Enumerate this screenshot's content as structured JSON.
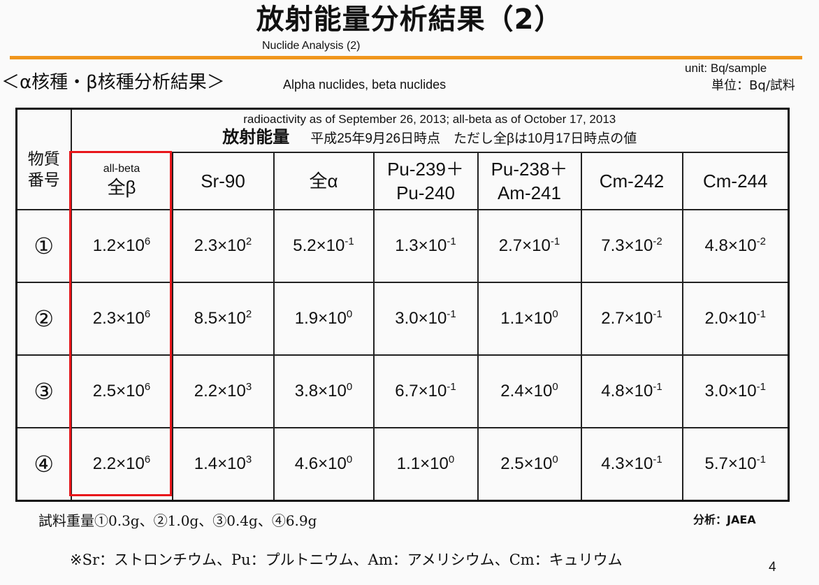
{
  "title": "放射能量分析結果（2）",
  "subtitle": "Nuclide Analysis (2)",
  "section": {
    "jp": "＜α核種・β核種分析結果＞",
    "en": "Alpha nuclides, beta nuclides"
  },
  "unit": {
    "en": "unit: Bq/sample",
    "jp": "単位：Bq/試料"
  },
  "table": {
    "row_header": "物質番号",
    "group_header_en": "radioactivity as of September 26, 2013; all-beta as of October 17, 2013",
    "group_header_jp": "放射能量",
    "group_header_note": "平成25年9月26日時点　ただし全βは10月17日時点の値",
    "columns": [
      {
        "small": "all-beta",
        "label": "全β"
      },
      {
        "label": "Sr-90"
      },
      {
        "label": "全α"
      },
      {
        "label": "Pu-239＋",
        "label2": "Pu-240"
      },
      {
        "label": "Pu-238＋",
        "label2": "Am-241"
      },
      {
        "label": "Cm-242"
      },
      {
        "label": "Cm-244"
      }
    ],
    "rows": [
      {
        "id": "①",
        "cells": [
          {
            "m": "1.2",
            "e": "6"
          },
          {
            "m": "2.3",
            "e": "2"
          },
          {
            "m": "5.2",
            "e": "-1"
          },
          {
            "m": "1.3",
            "e": "-1"
          },
          {
            "m": "2.7",
            "e": "-1"
          },
          {
            "m": "7.3",
            "e": "-2"
          },
          {
            "m": "4.8",
            "e": "-2"
          }
        ]
      },
      {
        "id": "②",
        "cells": [
          {
            "m": "2.3",
            "e": "6"
          },
          {
            "m": "8.5",
            "e": "2"
          },
          {
            "m": "1.9",
            "e": "0"
          },
          {
            "m": "3.0",
            "e": "-1"
          },
          {
            "m": "1.1",
            "e": "0"
          },
          {
            "m": "2.7",
            "e": "-1"
          },
          {
            "m": "2.0",
            "e": "-1"
          }
        ]
      },
      {
        "id": "③",
        "cells": [
          {
            "m": "2.5",
            "e": "6"
          },
          {
            "m": "2.2",
            "e": "3"
          },
          {
            "m": "3.8",
            "e": "0"
          },
          {
            "m": "6.7",
            "e": "-1"
          },
          {
            "m": "2.4",
            "e": "0"
          },
          {
            "m": "4.8",
            "e": "-1"
          },
          {
            "m": "3.0",
            "e": "-1"
          }
        ]
      },
      {
        "id": "④",
        "cells": [
          {
            "m": "2.2",
            "e": "6"
          },
          {
            "m": "1.4",
            "e": "3"
          },
          {
            "m": "4.6",
            "e": "0"
          },
          {
            "m": "1.1",
            "e": "0"
          },
          {
            "m": "2.5",
            "e": "0"
          },
          {
            "m": "4.3",
            "e": "-1"
          },
          {
            "m": "5.7",
            "e": "-1"
          }
        ]
      }
    ],
    "times": "×",
    "base": "10"
  },
  "weights": "試料重量①0.3g、②1.0g、③0.4g、④6.9g",
  "analyst": "分析：JAEA",
  "footnote": "※Sr：ストロンチウム、Pu：プルトニウム、Am：アメリシウム、Cm：キュリウム",
  "page_number": "4",
  "colors": {
    "accent_rule": "#f0961c",
    "highlight_box": "#e8161b"
  }
}
